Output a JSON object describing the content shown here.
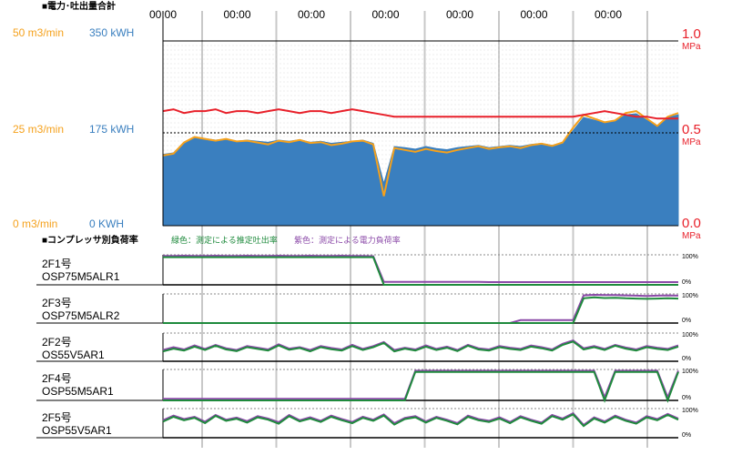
{
  "colors": {
    "flow": "#f5a11c",
    "power": "#3a7fbf",
    "pressure": "#e8202a",
    "load_est_flow": "#1e8a3c",
    "load_est_power": "#8b4aa8",
    "frame": "#000000",
    "dashed": "#888888",
    "separator": "#c8c8c8"
  },
  "header": {
    "section1_title": "■電力･吐出量合計",
    "section2_title": "■コンプレッサ別負荷率",
    "legend_green": "緑色：測定による推定吐出率",
    "legend_purple": "紫色：測定による電力負荷率"
  },
  "chart_data": [
    {
      "type": "area",
      "title": "■電力･吐出量合計",
      "x": {
        "tick_labels": [
          "00:00",
          "00:00",
          "00:00",
          "00:00",
          "00:00",
          "00:00",
          "00:00"
        ]
      },
      "axes": {
        "flow_left": {
          "labels": [
            "50 m3/min",
            "25 m3/min",
            "0 m3/min"
          ],
          "range": [
            0,
            50
          ]
        },
        "power_left": {
          "labels": [
            "350 kWH",
            "175 kWH",
            "0 KWH"
          ],
          "range": [
            0,
            350
          ]
        },
        "pressure_right": {
          "labels": [
            "1.0",
            "0.5",
            "0.0"
          ],
          "unit": "MPa",
          "range": [
            0,
            1.0
          ]
        }
      },
      "series": [
        {
          "name": "power_kwh",
          "values": [
            135,
            138,
            158,
            168,
            165,
            162,
            164,
            160,
            162,
            160,
            158,
            162,
            160,
            163,
            158,
            160,
            156,
            158,
            160,
            162,
            156,
            80,
            150,
            148,
            145,
            150,
            146,
            144,
            148,
            150,
            152,
            148,
            150,
            152,
            150,
            154,
            156,
            152,
            158,
            180,
            205,
            200,
            195,
            198,
            210,
            212,
            200,
            190,
            205,
            210
          ]
        },
        {
          "name": "flow_m3min",
          "values": [
            19.0,
            19.5,
            22.5,
            24.0,
            23.5,
            23.0,
            23.5,
            22.8,
            23.0,
            22.5,
            22.0,
            23.0,
            22.6,
            23.2,
            22.4,
            22.6,
            21.8,
            22.2,
            22.8,
            23.0,
            22.0,
            8.0,
            21.0,
            20.5,
            20.0,
            20.8,
            20.2,
            19.8,
            20.5,
            21.0,
            21.5,
            20.8,
            21.2,
            21.5,
            21.0,
            21.8,
            22.2,
            21.6,
            22.5,
            26.5,
            30.0,
            29.0,
            28.0,
            28.5,
            30.5,
            31.0,
            29.0,
            27.0,
            29.5,
            30.5
          ]
        },
        {
          "name": "pressure_mpa",
          "values": [
            0.62,
            0.63,
            0.61,
            0.62,
            0.62,
            0.63,
            0.61,
            0.62,
            0.62,
            0.61,
            0.62,
            0.63,
            0.62,
            0.61,
            0.62,
            0.62,
            0.61,
            0.62,
            0.63,
            0.62,
            0.61,
            0.6,
            0.59,
            0.59,
            0.59,
            0.59,
            0.59,
            0.59,
            0.59,
            0.59,
            0.59,
            0.59,
            0.59,
            0.59,
            0.59,
            0.59,
            0.59,
            0.59,
            0.59,
            0.59,
            0.6,
            0.61,
            0.62,
            0.61,
            0.6,
            0.59,
            0.59,
            0.58,
            0.58,
            0.58
          ]
        }
      ]
    },
    {
      "type": "line",
      "title": "■コンプレッサ別負荷率",
      "y": {
        "tick_labels": [
          "100%",
          "0%"
        ],
        "range": [
          0,
          100
        ]
      },
      "compressors": [
        {
          "line1": "2F1号",
          "line2": "OSP75M5ALR1",
          "est_flow": [
            92,
            92,
            92,
            92,
            92,
            92,
            92,
            92,
            92,
            92,
            92,
            92,
            92,
            92,
            92,
            92,
            92,
            92,
            92,
            92,
            92,
            0,
            0,
            0,
            0,
            0,
            0,
            0,
            0,
            0,
            0,
            0,
            0,
            0,
            0,
            0,
            0,
            0,
            0,
            0,
            0,
            0,
            0,
            0,
            0,
            0,
            0,
            0,
            0,
            0
          ],
          "power_load": [
            96,
            96,
            97,
            96,
            96,
            97,
            96,
            96,
            97,
            96,
            96,
            97,
            96,
            96,
            97,
            96,
            96,
            97,
            96,
            96,
            95,
            10,
            10,
            10,
            10,
            10,
            10,
            10,
            10,
            10,
            10,
            9,
            9,
            9,
            9,
            9,
            9,
            9,
            9,
            9,
            9,
            9,
            9,
            9,
            9,
            9,
            9,
            9,
            9,
            9
          ]
        },
        {
          "line1": "2F3号",
          "line2": "OSP75M5ALR2",
          "est_flow": [
            0,
            0,
            0,
            0,
            0,
            0,
            0,
            0,
            0,
            0,
            0,
            0,
            0,
            0,
            0,
            0,
            0,
            0,
            0,
            0,
            0,
            0,
            0,
            0,
            0,
            0,
            0,
            0,
            0,
            0,
            0,
            0,
            0,
            0,
            0,
            0,
            0,
            0,
            0,
            0,
            85,
            88,
            86,
            87,
            85,
            84,
            83,
            84,
            85,
            84
          ],
          "power_load": [
            0,
            0,
            0,
            0,
            0,
            0,
            0,
            0,
            0,
            0,
            0,
            0,
            0,
            0,
            0,
            0,
            0,
            0,
            0,
            0,
            0,
            0,
            0,
            0,
            0,
            0,
            0,
            0,
            0,
            0,
            0,
            0,
            0,
            0,
            10,
            10,
            10,
            10,
            10,
            10,
            95,
            97,
            96,
            96,
            95,
            94,
            93,
            94,
            95,
            94
          ]
        },
        {
          "line1": "2F2号",
          "line2": "OS55V5AR1",
          "est_flow": [
            35,
            45,
            38,
            52,
            40,
            55,
            42,
            36,
            50,
            44,
            38,
            56,
            41,
            47,
            35,
            50,
            43,
            38,
            54,
            40,
            50,
            65,
            35,
            45,
            38,
            52,
            40,
            48,
            36,
            55,
            42,
            38,
            50,
            44,
            40,
            52,
            46,
            38,
            58,
            70,
            42,
            50,
            40,
            55,
            45,
            38,
            50,
            44,
            40,
            52
          ],
          "power_load": [
            40,
            50,
            42,
            56,
            44,
            58,
            46,
            40,
            54,
            48,
            42,
            60,
            45,
            50,
            40,
            54,
            47,
            42,
            58,
            44,
            54,
            68,
            40,
            48,
            42,
            56,
            44,
            52,
            40,
            58,
            46,
            42,
            54,
            48,
            44,
            56,
            50,
            42,
            62,
            74,
            46,
            54,
            44,
            58,
            49,
            42,
            54,
            48,
            44,
            56
          ]
        },
        {
          "line1": "2F4号",
          "line2": "OSP55M5AR1",
          "est_flow": [
            0,
            0,
            0,
            0,
            0,
            0,
            0,
            0,
            0,
            0,
            0,
            0,
            0,
            0,
            0,
            0,
            0,
            0,
            0,
            0,
            0,
            0,
            0,
            0,
            92,
            92,
            92,
            92,
            92,
            92,
            92,
            92,
            92,
            92,
            92,
            92,
            92,
            92,
            92,
            92,
            92,
            92,
            0,
            92,
            92,
            92,
            92,
            92,
            0,
            92
          ],
          "power_load": [
            5,
            5,
            5,
            5,
            5,
            5,
            5,
            5,
            5,
            5,
            5,
            5,
            5,
            5,
            5,
            5,
            5,
            5,
            5,
            5,
            5,
            5,
            5,
            5,
            96,
            96,
            96,
            96,
            96,
            96,
            96,
            96,
            96,
            96,
            96,
            96,
            96,
            96,
            96,
            96,
            96,
            96,
            10,
            96,
            96,
            96,
            96,
            96,
            10,
            96
          ]
        },
        {
          "line1": "2F5号",
          "line2": "OSP55V5AR1",
          "est_flow": [
            55,
            72,
            60,
            68,
            50,
            75,
            58,
            65,
            52,
            70,
            62,
            48,
            74,
            56,
            66,
            54,
            72,
            60,
            50,
            68,
            58,
            76,
            45,
            64,
            70,
            52,
            68,
            58,
            46,
            72,
            60,
            54,
            66,
            50,
            70,
            58,
            48,
            74,
            62,
            80,
            40,
            66,
            52,
            72,
            58,
            48,
            70,
            60,
            78,
            62
          ],
          "power_load": [
            60,
            76,
            64,
            72,
            55,
            78,
            62,
            69,
            57,
            74,
            66,
            53,
            78,
            60,
            70,
            58,
            76,
            64,
            54,
            72,
            62,
            80,
            50,
            68,
            74,
            56,
            72,
            62,
            50,
            76,
            64,
            58,
            70,
            54,
            74,
            62,
            52,
            78,
            66,
            84,
            44,
            70,
            56,
            76,
            62,
            52,
            74,
            64,
            82,
            66
          ]
        }
      ]
    }
  ]
}
